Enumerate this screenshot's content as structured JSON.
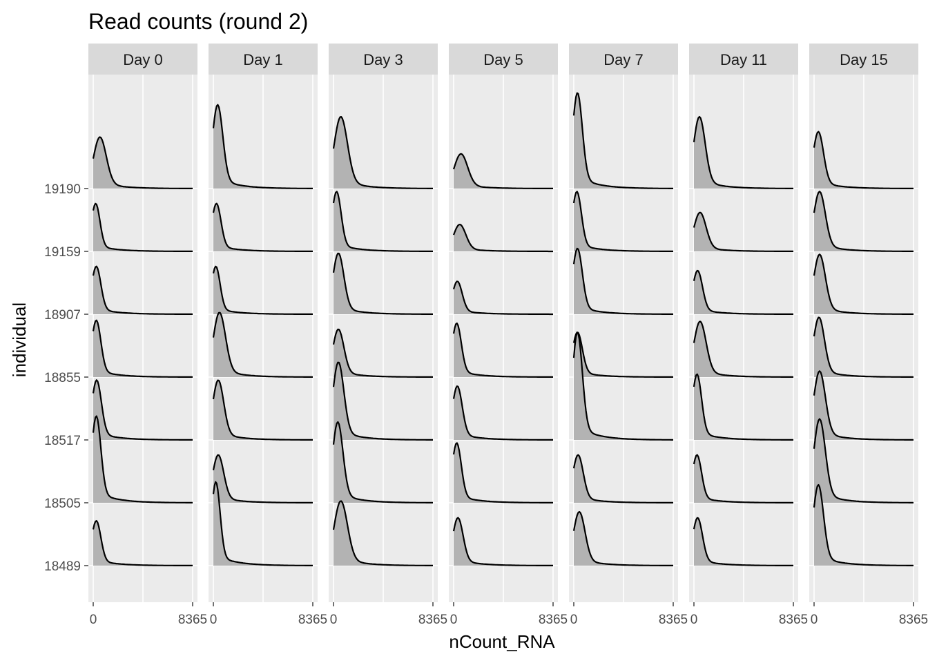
{
  "chart_data": {
    "type": "ridgeline",
    "title": "Read counts (round 2)",
    "xlabel": "nCount_RNA",
    "ylabel": "individual",
    "xlim": [
      0,
      8365
    ],
    "x_tick_labels": [
      "0",
      "8365"
    ],
    "panels": [
      "Day 0",
      "Day 1",
      "Day 3",
      "Day 5",
      "Day 7",
      "Day 11",
      "Day 15"
    ],
    "individuals": [
      "19190",
      "19159",
      "18907",
      "18855",
      "18517",
      "18505",
      "18489"
    ],
    "fill_color": "#b3b3b3",
    "line_color": "#000000",
    "panel_bg": "#ebebeb",
    "strip_bg": "#d9d9d9",
    "density_peaks": [
      {
        "panel": "Day 0",
        "peak_x": [
          550,
          200,
          250,
          250,
          280,
          250,
          250
        ],
        "peak_height": [
          0.86,
          0.8,
          0.8,
          0.95,
          1.0,
          1.45,
          0.75
        ]
      },
      {
        "panel": "Day 1",
        "peak_x": [
          350,
          250,
          200,
          500,
          400,
          400,
          200
        ],
        "peak_height": [
          1.4,
          0.8,
          0.8,
          1.08,
          1.0,
          0.8,
          1.4
        ]
      },
      {
        "panel": "Day 3",
        "peak_x": [
          600,
          250,
          400,
          400,
          400,
          350,
          600
        ],
        "peak_height": [
          1.2,
          1.0,
          1.02,
          0.8,
          1.3,
          1.35,
          1.08
        ]
      },
      {
        "panel": "Day 5",
        "peak_x": [
          600,
          500,
          300,
          250,
          300,
          250,
          350
        ],
        "peak_height": [
          0.58,
          0.45,
          0.55,
          0.9,
          0.9,
          1.0,
          0.8
        ]
      },
      {
        "panel": "Day 7",
        "peak_x": [
          300,
          250,
          300,
          300,
          300,
          350,
          450
        ],
        "peak_height": [
          1.6,
          1.0,
          1.1,
          0.75,
          1.8,
          0.8,
          0.9
        ]
      },
      {
        "panel": "Day 11",
        "peak_x": [
          450,
          500,
          300,
          500,
          250,
          250,
          300
        ],
        "peak_height": [
          1.2,
          0.65,
          0.73,
          0.93,
          1.1,
          0.8,
          0.8
        ]
      },
      {
        "panel": "Day 15",
        "peak_x": [
          350,
          450,
          450,
          400,
          450,
          450,
          350
        ],
        "peak_height": [
          0.95,
          1.0,
          1.0,
          1.0,
          1.15,
          1.4,
          1.35
        ]
      }
    ]
  }
}
